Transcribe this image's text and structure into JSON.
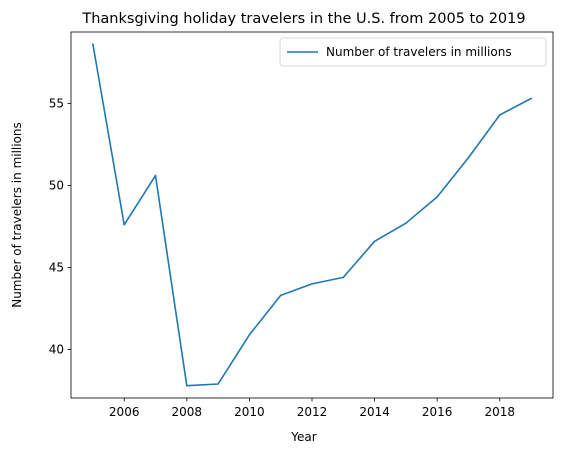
{
  "chart_data": {
    "type": "line",
    "title": "Thanksgiving holiday travelers in the U.S. from 2005 to 2019",
    "xlabel": "Year",
    "ylabel": "Number of travelers in millions",
    "x": [
      2005,
      2006,
      2007,
      2008,
      2009,
      2010,
      2011,
      2012,
      2013,
      2014,
      2015,
      2016,
      2017,
      2018,
      2019
    ],
    "series": [
      {
        "name": "Number of travelers in millions",
        "values": [
          58.6,
          47.6,
          50.6,
          37.8,
          37.9,
          40.9,
          43.3,
          44.0,
          44.4,
          46.6,
          47.7,
          49.3,
          51.7,
          54.3,
          55.3
        ],
        "color": "#1f77b4"
      }
    ],
    "xticks": [
      2006,
      2008,
      2010,
      2012,
      2014,
      2016,
      2018
    ],
    "yticks": [
      40,
      45,
      50,
      55
    ],
    "xlim": [
      2004.3,
      2019.7
    ],
    "ylim": [
      37.05,
      59.35
    ],
    "grid": false,
    "legend_position": "upper right"
  }
}
